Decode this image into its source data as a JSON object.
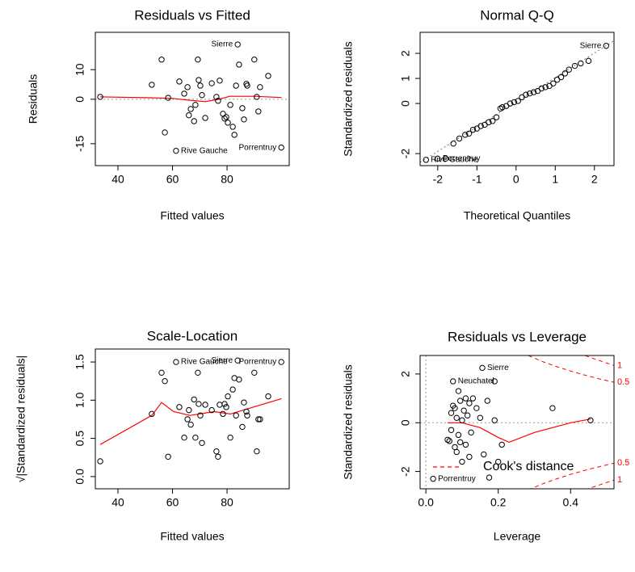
{
  "chart_data": [
    {
      "type": "scatter",
      "title": "Residuals vs Fitted",
      "x_label": "Fitted values",
      "y_label": "Residuals",
      "xlim": [
        31.7,
        102.8
      ],
      "ylim": [
        -22.4,
        22.6
      ],
      "xticks": [
        40,
        60,
        80
      ],
      "yticks": [
        -15,
        0,
        10
      ],
      "x": [
        33.5,
        52.4,
        56,
        57.2,
        58.4,
        61.3,
        62.5,
        64.3,
        65.5,
        66,
        66.7,
        67.9,
        68.4,
        69.3,
        69.6,
        70.2,
        70.8,
        72,
        74.4,
        76.1,
        76.7,
        77.3,
        78.5,
        79.1,
        79.7,
        80.3,
        81.2,
        82.1,
        82.7,
        83.3,
        83.9,
        84.4,
        85.6,
        86.2,
        87.1,
        87.4,
        90,
        90.9,
        91.5,
        92.1,
        95.1,
        99.9
      ],
      "y": [
        0.8,
        4.9,
        13.4,
        -11.2,
        0.5,
        -17.4,
        6,
        1.9,
        4.1,
        -5.4,
        -3.3,
        -7.4,
        -1.9,
        13.4,
        6.5,
        4.6,
        1.4,
        -6.3,
        5.4,
        0.8,
        -0.5,
        6.3,
        -4.9,
        -6.5,
        -6,
        -7.9,
        -1.9,
        -9.3,
        -12,
        4.6,
        18.5,
        11.7,
        -3,
        -6.8,
        5.2,
        4.6,
        13.4,
        0.8,
        -4.1,
        4.1,
        7.9,
        -16.3
      ],
      "point_labels": [
        null,
        null,
        null,
        null,
        null,
        "Rive Gauche",
        null,
        null,
        null,
        null,
        null,
        null,
        null,
        null,
        null,
        null,
        null,
        null,
        null,
        null,
        null,
        null,
        null,
        null,
        null,
        null,
        null,
        null,
        null,
        null,
        "Sierre",
        null,
        null,
        null,
        null,
        null,
        null,
        null,
        null,
        null,
        null,
        "Porrentruy"
      ],
      "smooth": {
        "color": "#ff0000",
        "x": [
          33.5,
          52,
          60,
          66,
          72,
          77,
          81,
          90,
          100
        ],
        "y": [
          0.8,
          0.5,
          0.3,
          -0.3,
          -0.8,
          0.0,
          1.0,
          1.0,
          0.6
        ]
      },
      "hline": 0
    },
    {
      "type": "scatter",
      "title": "Normal Q-Q",
      "x_label": "Theoretical Quantiles",
      "y_label": "Standardized residuals",
      "xlim": [
        -2.45,
        2.5
      ],
      "ylim": [
        -2.48,
        2.84
      ],
      "xticks": [
        -2,
        -1,
        0,
        1,
        2
      ],
      "yticks": [
        -2,
        0,
        1,
        2
      ],
      "x": [
        -2.3,
        -2.0,
        -1.8,
        -1.6,
        -1.45,
        -1.3,
        -1.2,
        -1.1,
        -1.0,
        -0.9,
        -0.8,
        -0.7,
        -0.6,
        -0.5,
        -0.4,
        -0.35,
        -0.25,
        -0.15,
        -0.05,
        0.05,
        0.15,
        0.25,
        0.35,
        0.45,
        0.55,
        0.65,
        0.75,
        0.85,
        0.95,
        1.05,
        1.15,
        1.25,
        1.35,
        1.5,
        1.65,
        1.85,
        2.3
      ],
      "y": [
        -2.25,
        -2.2,
        -2.2,
        -1.6,
        -1.4,
        -1.25,
        -1.2,
        -1.05,
        -1.0,
        -0.9,
        -0.85,
        -0.75,
        -0.7,
        -0.55,
        -0.2,
        -0.15,
        -0.1,
        0.0,
        0.05,
        0.1,
        0.25,
        0.35,
        0.4,
        0.45,
        0.5,
        0.6,
        0.65,
        0.7,
        0.8,
        0.95,
        1.05,
        1.2,
        1.35,
        1.5,
        1.6,
        1.7,
        2.3
      ],
      "point_labels": [
        "Rive Gauche",
        "Porrentruy",
        null,
        null,
        null,
        null,
        null,
        null,
        null,
        null,
        null,
        null,
        null,
        null,
        null,
        null,
        null,
        null,
        null,
        null,
        null,
        null,
        null,
        null,
        null,
        null,
        null,
        null,
        null,
        null,
        null,
        null,
        null,
        null,
        null,
        null,
        "Sierre"
      ],
      "reference_line": {
        "x": [
          -2.45,
          2.5
        ],
        "y": [
          -2.35,
          2.5
        ]
      }
    },
    {
      "type": "scatter",
      "title": "Scale-Location",
      "x_label": "Fitted values",
      "y_label": "√|Standardized residuals|",
      "xlim": [
        31.7,
        102.8
      ],
      "ylim": [
        -0.16,
        1.67
      ],
      "xticks": [
        40,
        60,
        80
      ],
      "yticks": [
        {
          "value": 0,
          "label": "0.0"
        },
        0.5,
        {
          "value": 1,
          "label": "1.0"
        },
        1.5
      ],
      "x": [
        33.5,
        52.4,
        56,
        57.2,
        58.4,
        61.3,
        62.5,
        64.3,
        65.5,
        66,
        66.7,
        67.9,
        68.4,
        69.3,
        69.6,
        70.2,
        70.8,
        72,
        74.4,
        76.1,
        76.7,
        77.3,
        78.5,
        79.1,
        79.7,
        80.3,
        81.2,
        82.1,
        82.7,
        83.3,
        83.9,
        84.4,
        85.6,
        86.2,
        87.1,
        87.4,
        90,
        90.9,
        91.5,
        92.1,
        95.1,
        99.9
      ],
      "y": [
        0.2,
        0.82,
        1.36,
        1.25,
        0.26,
        1.5,
        0.91,
        0.51,
        0.75,
        0.87,
        0.68,
        1.01,
        0.51,
        1.36,
        0.95,
        0.8,
        0.44,
        0.94,
        0.87,
        0.33,
        0.26,
        0.94,
        0.82,
        0.95,
        0.91,
        1.05,
        0.51,
        1.14,
        1.29,
        0.8,
        1.52,
        1.27,
        0.65,
        0.97,
        0.85,
        0.8,
        1.36,
        0.33,
        0.75,
        0.75,
        1.05,
        1.5
      ],
      "point_labels": [
        null,
        null,
        null,
        null,
        null,
        "Rive Gauche",
        null,
        null,
        null,
        null,
        null,
        null,
        null,
        null,
        null,
        null,
        null,
        null,
        null,
        null,
        null,
        null,
        null,
        null,
        null,
        null,
        null,
        null,
        null,
        null,
        "Sierre",
        null,
        null,
        null,
        null,
        null,
        null,
        null,
        null,
        null,
        null,
        "Porrentruy"
      ],
      "smooth": {
        "color": "#ff0000",
        "x": [
          33.5,
          52.4,
          56,
          60.4,
          66.4,
          75.3,
          81.2,
          100
        ],
        "y": [
          0.42,
          0.8,
          0.97,
          0.85,
          0.8,
          0.85,
          0.82,
          1.02
        ]
      }
    },
    {
      "type": "scatter",
      "title": "Residuals vs Leverage",
      "x_label": "Leverage",
      "y_label": "Standardized residuals",
      "xlim": [
        -0.016,
        0.52
      ],
      "ylim": [
        -2.71,
        2.76
      ],
      "xticks": [
        {
          "value": 0,
          "label": "0.0"
        },
        0.2,
        0.4
      ],
      "yticks": [
        -2,
        0,
        2
      ],
      "x": [
        0.06,
        0.065,
        0.07,
        0.07,
        0.075,
        0.075,
        0.08,
        0.08,
        0.085,
        0.085,
        0.09,
        0.09,
        0.095,
        0.095,
        0.1,
        0.1,
        0.105,
        0.11,
        0.11,
        0.115,
        0.12,
        0.12,
        0.125,
        0.13,
        0.14,
        0.15,
        0.156,
        0.16,
        0.17,
        0.175,
        0.19,
        0.19,
        0.2,
        0.21,
        0.35,
        0.455,
        0.02
      ],
      "y": [
        -0.7,
        -0.75,
        0.4,
        -0.3,
        1.7,
        0.7,
        0.6,
        -1.0,
        -1.2,
        0.2,
        1.3,
        -0.5,
        0.9,
        -0.8,
        0.1,
        -1.6,
        0.5,
        -0.9,
        1.0,
        0.3,
        -1.4,
        0.8,
        -0.4,
        1.0,
        0.6,
        0.2,
        2.25,
        -1.3,
        0.9,
        -2.25,
        1.7,
        0.1,
        -1.6,
        -0.9,
        0.6,
        0.1,
        -2.3
      ],
      "point_labels": [
        null,
        null,
        null,
        null,
        "Neuchatel",
        null,
        null,
        null,
        null,
        null,
        null,
        null,
        null,
        null,
        null,
        null,
        null,
        null,
        null,
        null,
        null,
        null,
        null,
        null,
        null,
        null,
        "Sierre",
        null,
        null,
        null,
        null,
        null,
        null,
        null,
        null,
        null,
        "Porrentruy"
      ],
      "smooth": {
        "color": "#ff0000",
        "x": [
          0.06,
          0.1,
          0.15,
          0.2,
          0.23,
          0.3,
          0.4,
          0.455
        ],
        "y": [
          0.0,
          0.0,
          -0.2,
          -0.6,
          -0.8,
          -0.4,
          0.0,
          0.15
        ]
      },
      "hline": 0,
      "vline": 0,
      "contours": [
        {
          "level": 0.5,
          "color": "#ff0000",
          "x": [
            0.283,
            0.32,
            0.36,
            0.4,
            0.44,
            0.48,
            0.52
          ],
          "y_upper": [
            2.76,
            2.52,
            2.31,
            2.12,
            1.95,
            1.8,
            1.66
          ],
          "y_lower": [
            -2.76,
            -2.52,
            -2.31,
            -2.12,
            -1.95,
            -1.8,
            -1.66
          ]
        },
        {
          "level": 1,
          "color": "#ff0000",
          "x": [
            0.44,
            0.46,
            0.48,
            0.5,
            0.52
          ],
          "y_upper": [
            2.76,
            2.65,
            2.55,
            2.45,
            2.35
          ],
          "y_lower": [
            -2.76,
            -2.65,
            -2.55,
            -2.45,
            -2.35
          ]
        }
      ],
      "legend": {
        "label": "Cook's distance",
        "position": "bottomleft",
        "color": "#ff0000"
      }
    }
  ]
}
